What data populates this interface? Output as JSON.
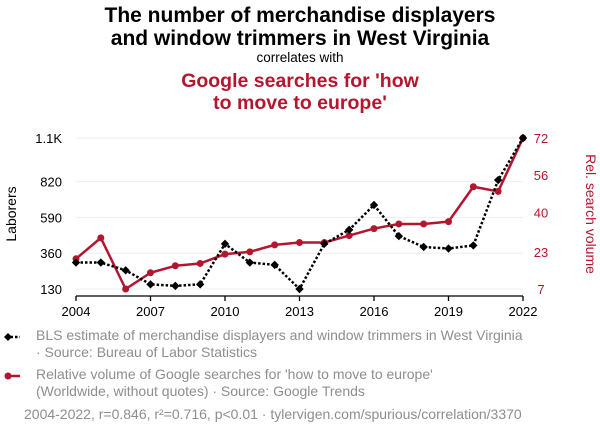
{
  "header": {
    "title_line1": "The number of merchandise displayers",
    "title_line2": "and window trimmers in West Virginia",
    "subtitle": "correlates with",
    "title2_line1": "Google searches for 'how",
    "title2_line2": "to move to europe'"
  },
  "colors": {
    "series1": "#000000",
    "series2": "#b5162f",
    "grid": "#eeeeee"
  },
  "chart_data": {
    "type": "line",
    "title": "The number of merchandise displayers and window trimmers in West Virginia correlates with Google searches for 'how to move to europe'",
    "x": [
      2004,
      2005,
      2006,
      2007,
      2008,
      2009,
      2010,
      2011,
      2012,
      2013,
      2014,
      2015,
      2016,
      2017,
      2018,
      2019,
      2020,
      2021,
      2022
    ],
    "xticks": [
      "2004",
      "2007",
      "2010",
      "2013",
      "2016",
      "2019",
      "2022"
    ],
    "xtick_values": [
      2004,
      2007,
      2010,
      2013,
      2016,
      2019,
      2022
    ],
    "left_axis": {
      "label": "Laborers",
      "ticks": [
        "1.1K",
        "820",
        "590",
        "360",
        "130"
      ],
      "tick_values": [
        1100,
        820,
        590,
        360,
        130
      ],
      "ylim": [
        130,
        1100
      ]
    },
    "right_axis": {
      "label": "Rel. search volume",
      "ticks": [
        "72",
        "56",
        "40",
        "23",
        "7"
      ],
      "tick_values": [
        72,
        56,
        40,
        23,
        7
      ],
      "ylim": [
        7,
        72
      ]
    },
    "series": [
      {
        "name": "BLS estimate of merchandise displayers and window trimmers in West Virginia",
        "axis": "left",
        "style": "dotted",
        "marker": "diamond",
        "values": [
          300,
          300,
          250,
          160,
          150,
          160,
          420,
          300,
          285,
          130,
          420,
          510,
          670,
          470,
          400,
          390,
          410,
          830,
          1100
        ]
      },
      {
        "name": "Relative volume of Google searches for 'how to move to europe' (Worldwide, without quotes)",
        "axis": "right",
        "style": "solid",
        "marker": "circle",
        "values": [
          20,
          29,
          7,
          14,
          17,
          18,
          22,
          23,
          26,
          27,
          27,
          30,
          33,
          35,
          35,
          36,
          51,
          49,
          72
        ]
      }
    ]
  },
  "legend": {
    "item1_line1": "BLS estimate of merchandise displayers and window trimmers in West Virginia",
    "item1_line2": "· Source: Bureau of Labor Statistics",
    "item2_line1": "Relative volume of Google searches for 'how to move to europe'",
    "item2_line2": "(Worldwide, without quotes) · Source: Google Trends"
  },
  "footer": {
    "text": "2004-2022, r=0.846, r²=0.716, p<0.01 · tylervigen.com/spurious/correlation/3370"
  }
}
